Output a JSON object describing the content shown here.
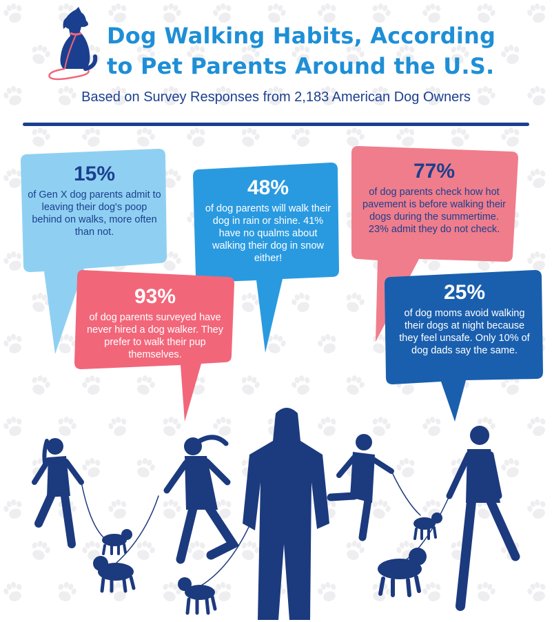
{
  "title_line1": "Dog Walking Habits, According",
  "title_line2": "to Pet Parents Around the U.S.",
  "subtitle": "Based on Survey Responses from 2,183 American Dog Owners",
  "colors": {
    "title": "#1e8fd6",
    "navy": "#1b3f8f",
    "light_blue": "#8fd0f2",
    "salmon": "#f2667a",
    "blue": "#2a9ae0",
    "pink": "#f07d8b",
    "dark_blue": "#1a5fae",
    "silhouette": "#1c3a7e"
  },
  "stats": [
    {
      "percent": "15%",
      "text": "of Gen X dog parents admit to leaving their dog's poop behind on walks, more often than not."
    },
    {
      "percent": "93%",
      "text": "of dog parents surveyed have never hired a dog walker. They prefer to walk their pup themselves."
    },
    {
      "percent": "48%",
      "text": "of dog parents will walk their dog in rain or shine. 41% have no qualms about walking their dog in snow either!"
    },
    {
      "percent": "77%",
      "text": "of dog parents check how hot pavement is before walking their dogs during the summertime. 23% admit they do not check."
    },
    {
      "percent": "25%",
      "text": "of dog moms avoid walking their dogs at night because they feel unsafe. Only 10% of dog dads say the same."
    }
  ]
}
